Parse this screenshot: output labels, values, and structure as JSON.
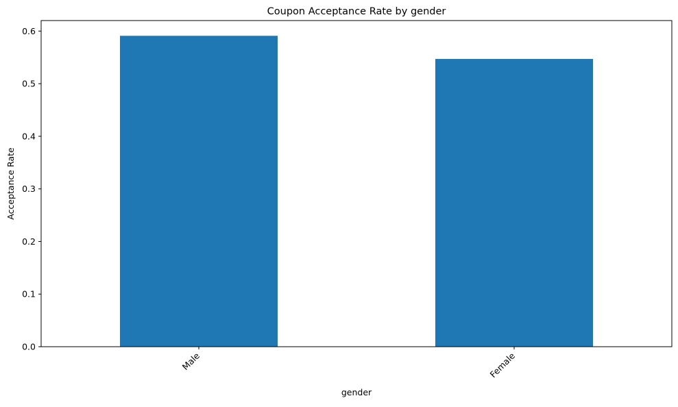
{
  "chart_data": {
    "type": "bar",
    "title": "Coupon Acceptance Rate by gender",
    "xlabel": "gender",
    "ylabel": "Acceptance Rate",
    "categories": [
      "Male",
      "Female"
    ],
    "values": [
      0.591,
      0.547
    ],
    "ylim": [
      0,
      0.62
    ],
    "yticks": [
      0.0,
      0.1,
      0.2,
      0.3,
      0.4,
      0.5,
      0.6
    ],
    "ytick_labels": [
      "0.0",
      "0.1",
      "0.2",
      "0.3",
      "0.4",
      "0.5",
      "0.6"
    ],
    "grid": false,
    "legend": "none",
    "colors": {
      "bar": "#1f77b4",
      "axes": "#000000",
      "background": "#ffffff"
    }
  }
}
